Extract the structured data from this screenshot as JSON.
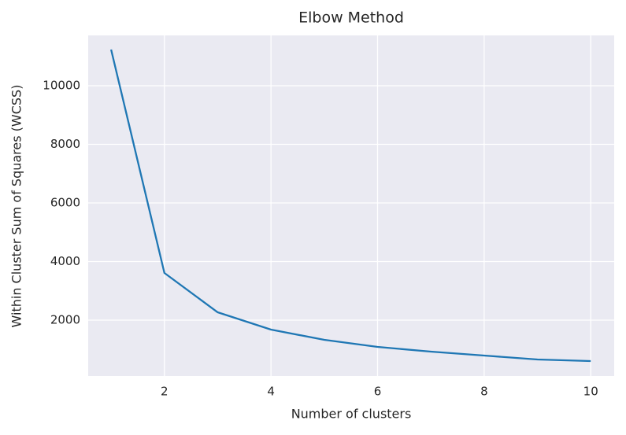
{
  "chart_data": {
    "type": "line",
    "title": "Elbow Method",
    "x_label": "Number of clusters",
    "y_label": "Within Cluster Sum of Squares (WCSS)",
    "x": [
      1,
      2,
      3,
      4,
      5,
      6,
      7,
      8,
      9,
      10
    ],
    "series": [
      {
        "name": "WCSS",
        "color": "#1f77b4",
        "values": [
          11235,
          3611,
          2268,
          1678,
          1329,
          1087,
          926,
          792,
          658,
          604
        ]
      }
    ],
    "xlim": [
      0.57,
      10.44
    ],
    "ylim": [
      94,
      11718
    ],
    "xticks": [
      2,
      4,
      6,
      8,
      10
    ],
    "yticks": [
      2000,
      4000,
      6000,
      8000,
      10000
    ],
    "grid": true,
    "background": "#eaeaf2"
  }
}
